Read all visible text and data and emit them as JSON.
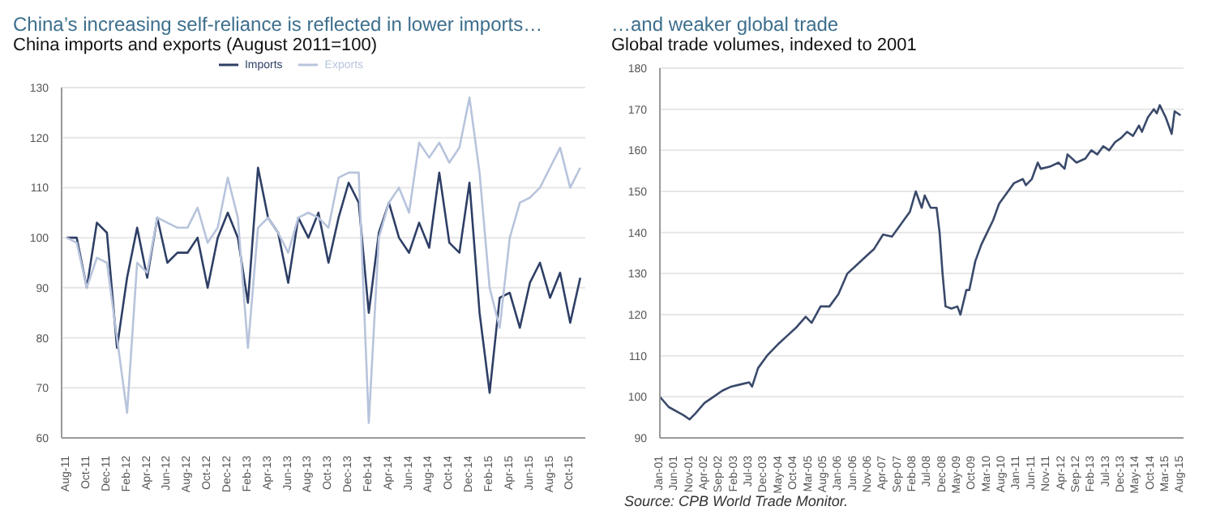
{
  "chart_data": [
    {
      "type": "line",
      "title": "China’s increasing self-reliance is reflected in lower imports…",
      "subtitle": "China imports and exports (August 2011=100)",
      "categories": [
        "Aug-11",
        null,
        "Oct-11",
        null,
        "Dec-11",
        null,
        "Feb-12",
        null,
        "Apr-12",
        null,
        "Jun-12",
        null,
        "Aug-12",
        null,
        "Oct-12",
        null,
        "Dec-12",
        null,
        "Feb-13",
        null,
        "Apr-13",
        null,
        "Jun-13",
        null,
        "Aug-13",
        null,
        "Oct-13",
        null,
        "Dec-13",
        null,
        "Feb-14",
        null,
        "Apr-14",
        null,
        "Jun-14",
        null,
        "Aug-14",
        null,
        "Oct-14",
        null,
        "Dec-14",
        null,
        "Feb-15",
        null,
        "Apr-15",
        null,
        "Jun-15",
        null,
        "Aug-15",
        null,
        "Oct-15",
        null
      ],
      "series": [
        {
          "name": "Imports",
          "color": "#2e3f66",
          "values": [
            100,
            100,
            90,
            103,
            101,
            78,
            92,
            102,
            92,
            104,
            95,
            97,
            97,
            100,
            90,
            100,
            105,
            100,
            87,
            114,
            104,
            101,
            91,
            104,
            100,
            105,
            95,
            104,
            111,
            107,
            85,
            101,
            107,
            100,
            97,
            103,
            98,
            113,
            99,
            97,
            111,
            85,
            69,
            88,
            89,
            82,
            91,
            95,
            88,
            93,
            83,
            92
          ]
        },
        {
          "name": "Exports",
          "color": "#b8c4dc",
          "values": [
            100,
            99,
            90,
            96,
            95,
            80,
            65,
            95,
            93,
            104,
            103,
            102,
            102,
            106,
            99,
            102,
            112,
            104,
            78,
            102,
            104,
            101,
            97,
            104,
            105,
            104,
            102,
            112,
            113,
            113,
            63,
            100,
            107,
            110,
            105,
            119,
            116,
            119,
            115,
            118,
            128,
            113,
            90,
            82,
            100,
            107,
            108,
            110,
            114,
            118,
            110,
            114
          ]
        }
      ],
      "ylim": [
        60,
        130
      ],
      "yticks": [
        60,
        70,
        80,
        90,
        100,
        110,
        120,
        130
      ],
      "grid": "y",
      "legend": "top",
      "line_style": "solid",
      "marker": "none"
    },
    {
      "type": "line",
      "title": "…and weaker global trade",
      "subtitle": "Global trade volumes, indexed to 2001",
      "annotations": [
        "Source: CPB World Trade Monitor."
      ],
      "x": [
        "2001-01",
        "2001-04",
        "2001-09",
        "2001-11",
        "2002-01",
        "2002-04",
        "2002-07",
        "2002-10",
        "2003-01",
        "2003-04",
        "2003-07",
        "2003-08",
        "2003-10",
        "2004-01",
        "2004-05",
        "2004-08",
        "2004-11",
        "2005-02",
        "2005-04",
        "2005-07",
        "2005-10",
        "2006-01",
        "2006-04",
        "2006-07",
        "2006-10",
        "2007-01",
        "2007-04",
        "2007-07",
        "2007-10",
        "2008-01",
        "2008-03",
        "2008-05",
        "2008-06",
        "2008-08",
        "2008-10",
        "2008-11",
        "2008-12",
        "2009-01",
        "2009-03",
        "2009-05",
        "2009-06",
        "2009-08",
        "2009-09",
        "2009-11",
        "2010-01",
        "2010-03",
        "2010-05",
        "2010-07",
        "2010-10",
        "2010-12",
        "2011-03",
        "2011-04",
        "2011-06",
        "2011-08",
        "2011-09",
        "2011-12",
        "2012-03",
        "2012-05",
        "2012-06",
        "2012-09",
        "2012-12",
        "2013-02",
        "2013-04",
        "2013-06",
        "2013-08",
        "2013-10",
        "2013-12",
        "2014-02",
        "2014-04",
        "2014-06",
        "2014-07",
        "2014-09",
        "2014-11",
        "2014-12",
        "2015-01",
        "2015-03",
        "2015-05",
        "2015-06",
        "2015-07",
        "2015-08"
      ],
      "series": [
        {
          "color": "#3a4a6b",
          "values": [
            100,
            97.5,
            95.5,
            94.5,
            96,
            98.5,
            100,
            101.5,
            102.5,
            103,
            103.5,
            102.5,
            107,
            110,
            113,
            115,
            117,
            119.5,
            118,
            122,
            122,
            125,
            130,
            132,
            134,
            136,
            139.5,
            139,
            142,
            145,
            150,
            146,
            149,
            146,
            146,
            140,
            130,
            122,
            121.5,
            122,
            120,
            126,
            126,
            133,
            137,
            140,
            143,
            147,
            150,
            152,
            153,
            151.5,
            153,
            157,
            155.5,
            156,
            157,
            155.5,
            159,
            157,
            158,
            160,
            159,
            161,
            160,
            162,
            163,
            164.5,
            163.5,
            166,
            164.5,
            168,
            170,
            169,
            171,
            168,
            164,
            169.5,
            169,
            168.5
          ]
        }
      ],
      "xlim": [
        "2001-01",
        "2015-09"
      ],
      "xticks": [
        {
          "value": "2001-01",
          "label": "Jan-01"
        },
        {
          "value": "2001-06",
          "label": "Jun-01"
        },
        {
          "value": "2001-11",
          "label": "Nov-01"
        },
        {
          "value": "2002-04",
          "label": "Apr-02"
        },
        {
          "value": "2002-09",
          "label": "Sep-02"
        },
        {
          "value": "2003-02",
          "label": "Feb-03"
        },
        {
          "value": "2003-07",
          "label": "Jul-03"
        },
        {
          "value": "2003-12",
          "label": "Dec-03"
        },
        {
          "value": "2004-05",
          "label": "May-04"
        },
        {
          "value": "2004-10",
          "label": "Oct-04"
        },
        {
          "value": "2005-03",
          "label": "Mar-05"
        },
        {
          "value": "2005-08",
          "label": "Aug-05"
        },
        {
          "value": "2006-01",
          "label": "Jan-06"
        },
        {
          "value": "2006-06",
          "label": "Jun-06"
        },
        {
          "value": "2006-11",
          "label": "Nov-06"
        },
        {
          "value": "2007-04",
          "label": "Apr-07"
        },
        {
          "value": "2007-09",
          "label": "Sep-07"
        },
        {
          "value": "2008-02",
          "label": "Feb-08"
        },
        {
          "value": "2008-07",
          "label": "Jul-08"
        },
        {
          "value": "2008-12",
          "label": "Dec-08"
        },
        {
          "value": "2009-05",
          "label": "May-09"
        },
        {
          "value": "2009-10",
          "label": "Oct-09"
        },
        {
          "value": "2010-03",
          "label": "Mar-10"
        },
        {
          "value": "2010-08",
          "label": "Aug-10"
        },
        {
          "value": "2011-01",
          "label": "Jan-11"
        },
        {
          "value": "2011-06",
          "label": "Jun-11"
        },
        {
          "value": "2011-11",
          "label": "Nov-11"
        },
        {
          "value": "2012-04",
          "label": "Apr-12"
        },
        {
          "value": "2012-09",
          "label": "Sep-12"
        },
        {
          "value": "2013-02",
          "label": "Feb-13"
        },
        {
          "value": "2013-07",
          "label": "Jul-13"
        },
        {
          "value": "2013-12",
          "label": "Dec-13"
        },
        {
          "value": "2014-05",
          "label": "May-14"
        },
        {
          "value": "2014-10",
          "label": "Oct-14"
        },
        {
          "value": "2015-03",
          "label": "Mar-15"
        },
        {
          "value": "2015-08",
          "label": "Aug-15"
        }
      ],
      "ylim": [
        90,
        180
      ],
      "yticks": [
        90,
        100,
        110,
        120,
        130,
        140,
        150,
        160,
        170,
        180
      ],
      "grid": "y",
      "line_style": "solid",
      "marker": "none"
    }
  ]
}
